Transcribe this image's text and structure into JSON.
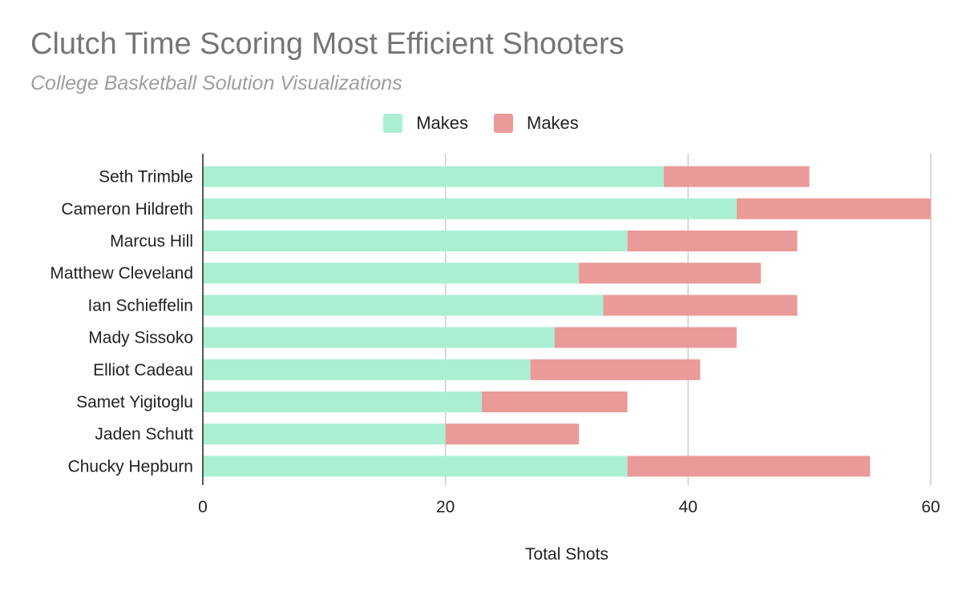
{
  "chart_data": {
    "type": "bar",
    "orientation": "horizontal",
    "stacked": true,
    "title": "Clutch Time Scoring Most Efficient Shooters",
    "subtitle": "College Basketball Solution Visualizations",
    "xlabel": "Total Shots",
    "ylabel": "",
    "xlim": [
      0,
      60
    ],
    "x_ticks": [
      0,
      20,
      40,
      60
    ],
    "x_tick_labels": [
      "0",
      "20",
      "40",
      "60"
    ],
    "grid": true,
    "legend_position": "top-center",
    "categories": [
      "Seth Trimble",
      "Cameron Hildreth",
      "Marcus Hill",
      "Matthew Cleveland",
      "Ian Schieffelin",
      "Mady Sissoko",
      "Elliot Cadeau",
      "Samet Yigitoglu",
      "Jaden Schutt",
      "Chucky Hepburn"
    ],
    "series": [
      {
        "name": "Makes",
        "color": "#abefd3",
        "values": [
          38,
          44,
          35,
          31,
          33,
          29,
          27,
          23,
          20,
          35
        ]
      },
      {
        "name": "Makes",
        "color": "#ea9a99",
        "values": [
          12,
          16,
          14,
          15,
          16,
          15,
          14,
          12,
          11,
          20
        ]
      }
    ]
  }
}
